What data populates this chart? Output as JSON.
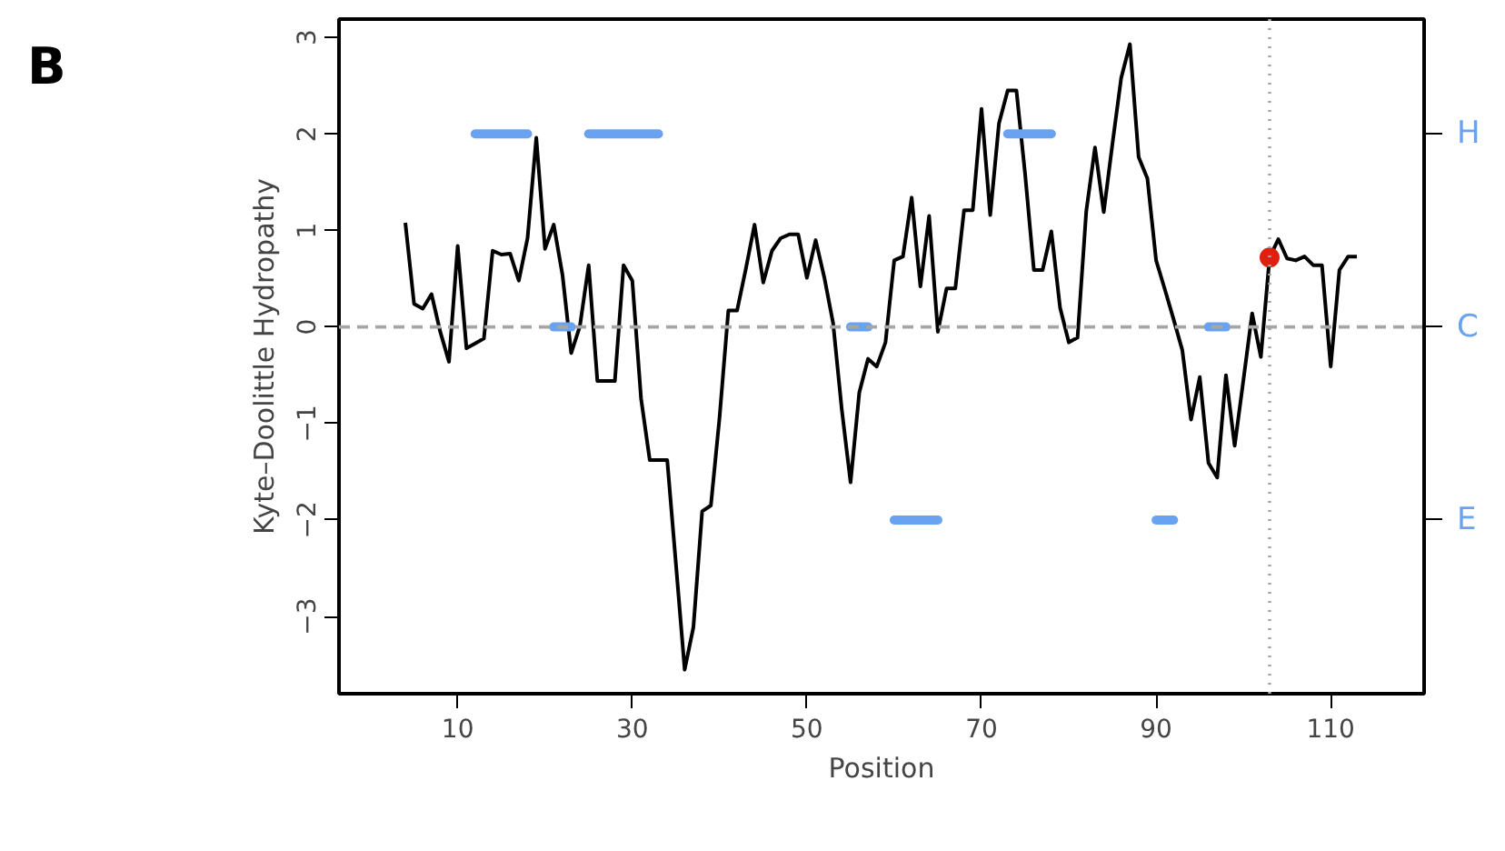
{
  "chart_data": {
    "type": "line",
    "xlabel": "Position",
    "ylabel": "Kyte–Doolittle Hydropathy",
    "annotations": [
      "B",
      "H",
      "C",
      "E"
    ],
    "xlim": [
      -3.6,
      120.7
    ],
    "ylim": [
      -3.8,
      3.19
    ],
    "xticks": [
      10,
      30,
      50,
      70,
      90,
      110
    ],
    "yticks": [
      -3,
      -2,
      -1,
      0,
      1,
      2,
      3
    ],
    "grid": false,
    "line_style": "solid",
    "series": [
      {
        "color": "#000000",
        "x": [
          4,
          5,
          6,
          7,
          8,
          9,
          10,
          11,
          12,
          13,
          14,
          15,
          16,
          17,
          18,
          19,
          20,
          21,
          22,
          23,
          24,
          25,
          26,
          27,
          28,
          29,
          30,
          31,
          32,
          33,
          34,
          35,
          36,
          37,
          38,
          39,
          40,
          41,
          42,
          43,
          44,
          45,
          46,
          47,
          48,
          49,
          50,
          51,
          52,
          53,
          54,
          55,
          56,
          57,
          58,
          59,
          60,
          61,
          62,
          63,
          64,
          65,
          66,
          67,
          68,
          69,
          70,
          71,
          72,
          73,
          74,
          75,
          76,
          77,
          78,
          79,
          80,
          81,
          82,
          83,
          84,
          85,
          86,
          87,
          88,
          89,
          90,
          91,
          92,
          93,
          94,
          95,
          96,
          97,
          98,
          99,
          100,
          101,
          102,
          103,
          104,
          105,
          106,
          107,
          108,
          109,
          110,
          111,
          112,
          113
        ],
        "values": [
          1.08,
          0.24,
          0.19,
          0.34,
          -0.05,
          -0.36,
          0.84,
          -0.22,
          -0.17,
          -0.12,
          0.79,
          0.75,
          0.76,
          0.48,
          0.92,
          1.96,
          0.81,
          1.06,
          0.54,
          -0.27,
          0.01,
          0.64,
          -0.56,
          -0.56,
          -0.56,
          0.64,
          0.48,
          -0.74,
          -1.38,
          -1.38,
          -1.38,
          -2.46,
          -3.55,
          -3.11,
          -1.91,
          -1.85,
          -0.93,
          0.17,
          0.17,
          0.6,
          1.06,
          0.46,
          0.79,
          0.92,
          0.96,
          0.96,
          0.51,
          0.9,
          0.51,
          0.04,
          -0.86,
          -1.61,
          -0.68,
          -0.33,
          -0.41,
          -0.16,
          0.69,
          0.73,
          1.34,
          0.42,
          1.15,
          -0.05,
          0.4,
          0.4,
          1.21,
          1.21,
          2.26,
          1.16,
          2.11,
          2.45,
          2.45,
          1.58,
          0.59,
          0.59,
          0.99,
          0.2,
          -0.16,
          -0.11,
          1.2,
          1.86,
          1.19,
          1.9,
          2.58,
          2.93,
          1.76,
          1.54,
          0.69,
          0.39,
          0.08,
          -0.24,
          -0.96,
          -0.52,
          -1.41,
          -1.56,
          -0.5,
          -1.23,
          -0.55,
          0.14,
          -0.31,
          0.72,
          0.91,
          0.71,
          0.69,
          0.73,
          0.64,
          0.64,
          -0.41,
          0.59,
          0.73,
          0.73
        ]
      },
      {
        "type": "line",
        "color": "#6aa2f2",
        "x": [
          12,
          18
        ],
        "values": [
          2,
          2
        ]
      },
      {
        "type": "line",
        "color": "#6aa2f2",
        "x": [
          25,
          33
        ],
        "values": [
          2,
          2
        ]
      },
      {
        "type": "line",
        "color": "#6aa2f2",
        "x": [
          73,
          78
        ],
        "values": [
          2,
          2
        ]
      },
      {
        "type": "line",
        "color": "#6aa2f2",
        "x": [
          21,
          23
        ],
        "values": [
          0,
          0
        ]
      },
      {
        "type": "line",
        "color": "#6aa2f2",
        "x": [
          55,
          57
        ],
        "values": [
          0,
          0
        ]
      },
      {
        "type": "line",
        "color": "#6aa2f2",
        "x": [
          96,
          98
        ],
        "values": [
          0,
          0
        ]
      },
      {
        "type": "line",
        "color": "#6aa2f2",
        "x": [
          60,
          65
        ],
        "values": [
          -2,
          -2
        ]
      },
      {
        "type": "line",
        "color": "#6aa2f2",
        "x": [
          90,
          92
        ],
        "values": [
          -2,
          -2
        ]
      },
      {
        "type": "scatter",
        "marker": "circle",
        "color": "#e0200f",
        "x": [
          103
        ],
        "values": [
          0.72
        ]
      }
    ],
    "ref_lines": [
      {
        "axis": "y",
        "value": 0,
        "color": "#a6a6a6",
        "line_style": "dashed"
      },
      {
        "axis": "x",
        "value": 103,
        "color": "#a6a6a6",
        "line_style": "dotted"
      }
    ]
  }
}
